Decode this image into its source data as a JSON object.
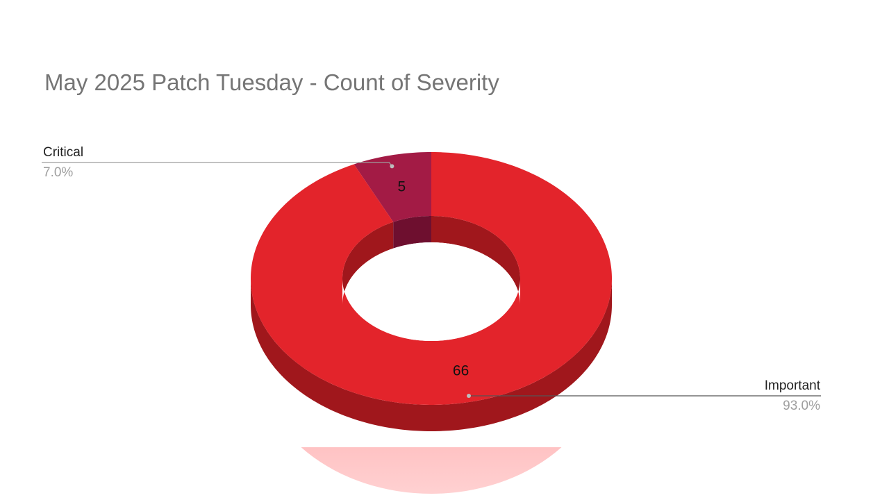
{
  "chart_data": {
    "type": "pie",
    "variant": "3d-donut",
    "title": "May 2025 Patch Tuesday - Count of Severity",
    "slices": [
      {
        "name": "Critical",
        "value": 5,
        "percent_label": "7.0%",
        "color": "#A31B45",
        "side_color": "#6E0F2F"
      },
      {
        "name": "Important",
        "value": 66,
        "percent_label": "93.0%",
        "color": "#E3242B",
        "side_color": "#A0171C"
      }
    ],
    "reflection_color": "#FF7B7D",
    "legend_placement": "outside-labels-with-leader-lines"
  }
}
